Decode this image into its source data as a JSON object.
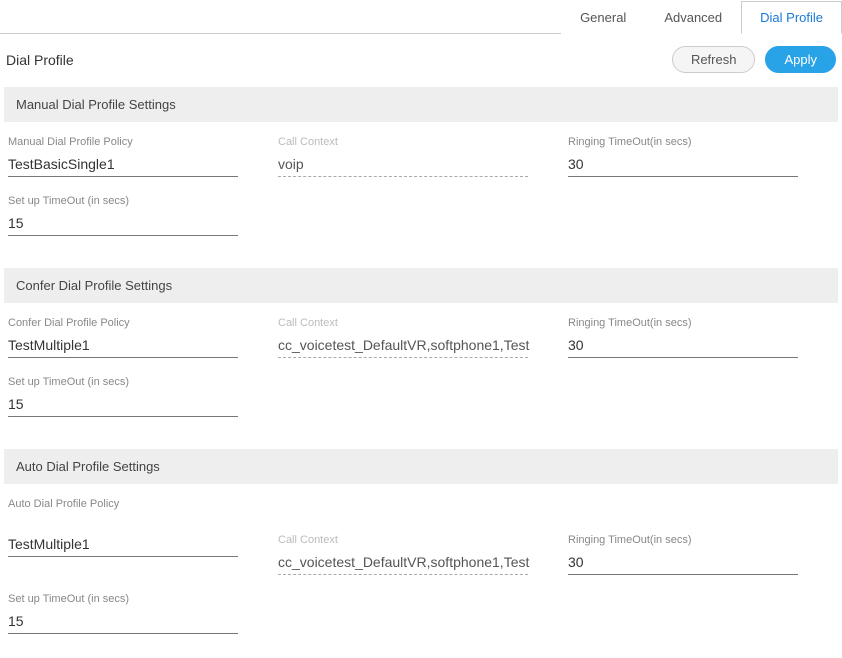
{
  "tabs": {
    "general": "General",
    "advanced": "Advanced",
    "dial_profile": "Dial Profile"
  },
  "page_title": "Dial Profile",
  "buttons": {
    "refresh": "Refresh",
    "apply": "Apply"
  },
  "sections": {
    "manual": {
      "header": "Manual Dial Profile Settings",
      "policy_label": "Manual Dial Profile Policy",
      "policy_value": "TestBasicSingle1",
      "call_context_label": "Call Context",
      "call_context_value": "voip",
      "ringing_label": "Ringing TimeOut(in secs)",
      "ringing_value": "30",
      "setup_label": "Set up TimeOut (in secs)",
      "setup_value": "15"
    },
    "confer": {
      "header": "Confer Dial Profile Settings",
      "policy_label": "Confer Dial Profile Policy",
      "policy_value": "TestMultiple1",
      "call_context_label": "Call Context",
      "call_context_value": "cc_voicetest_DefaultVR,softphone1,Test",
      "ringing_label": "Ringing TimeOut(in secs)",
      "ringing_value": "30",
      "setup_label": "Set up TimeOut (in secs)",
      "setup_value": "15"
    },
    "auto": {
      "header": "Auto Dial Profile Settings",
      "policy_label": "Auto Dial Profile Policy",
      "policy_value": "TestMultiple1",
      "call_context_label": "Call Context",
      "call_context_value": "cc_voicetest_DefaultVR,softphone1,Test",
      "ringing_label": "Ringing TimeOut(in secs)",
      "ringing_value": "30",
      "setup_label": "Set up TimeOut (in secs)",
      "setup_value": "15"
    }
  }
}
